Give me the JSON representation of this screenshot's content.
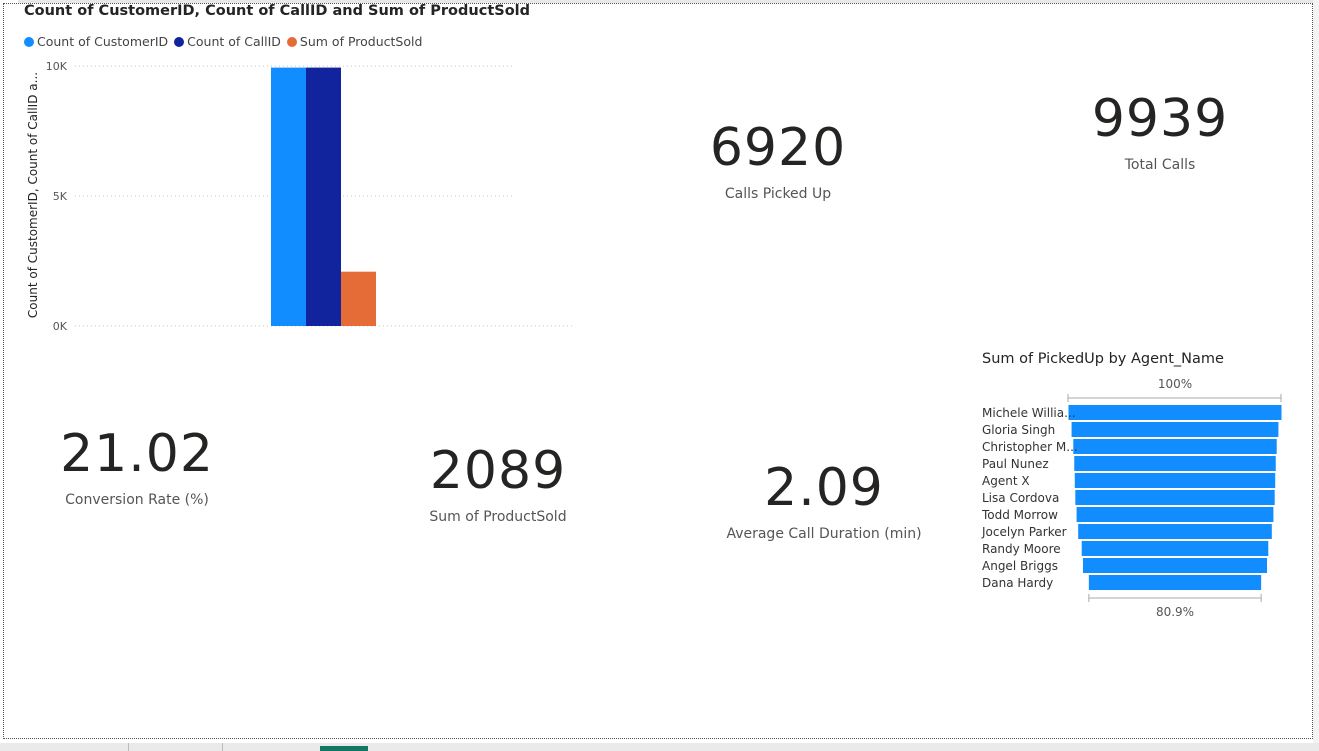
{
  "column_chart": {
    "title": "Count of CustomerID, Count of CallID and Sum of ProductSold",
    "ylabel": "Count of CustomerID, Count of CallID a...",
    "legend": [
      {
        "label": "Count of CustomerID",
        "color": "#118DFF"
      },
      {
        "label": "Count of CallID",
        "color": "#12239E"
      },
      {
        "label": "Sum of ProductSold",
        "color": "#E66C37"
      }
    ]
  },
  "kpis": {
    "calls_picked_up": {
      "value": "6920",
      "label": "Calls Picked Up"
    },
    "total_calls": {
      "value": "9939",
      "label": "Total Calls"
    },
    "conversion_rate": {
      "value": "21.02",
      "label": "Conversion Rate (%)"
    },
    "product_sold": {
      "value": "2089",
      "label": "Sum of ProductSold"
    },
    "avg_duration": {
      "value": "2.09",
      "label": "Average Call Duration (min)"
    }
  },
  "funnel": {
    "title": "Sum of PickedUp by Agent_Name",
    "top_pct": "100%",
    "bottom_pct": "80.9%"
  },
  "chart_data": [
    {
      "type": "bar",
      "title": "Count of CustomerID, Count of CallID and Sum of ProductSold",
      "ylabel": "Count of CustomerID, Count of CallID a...",
      "ylim": [
        0,
        10000
      ],
      "yticks": [
        "0K",
        "5K",
        "10K"
      ],
      "ytick_values": [
        0,
        5000,
        10000
      ],
      "grid": true,
      "legend_position": "top-left",
      "categories": [
        ""
      ],
      "series": [
        {
          "name": "Count of CustomerID",
          "color": "#118DFF",
          "values": [
            9939
          ]
        },
        {
          "name": "Count of CallID",
          "color": "#12239E",
          "values": [
            9939
          ]
        },
        {
          "name": "Sum of ProductSold",
          "color": "#E66C37",
          "values": [
            2089
          ]
        }
      ]
    },
    {
      "type": "bar",
      "orientation": "funnel",
      "title": "Sum of PickedUp by Agent_Name",
      "color": "#118DFF",
      "categories": [
        "Michele Willia...",
        "Gloria Singh",
        "Christopher M...",
        "Paul Nunez",
        "Agent X",
        "Lisa Cordova",
        "Todd Morrow",
        "Jocelyn Parker",
        "Randy Moore",
        "Angel Briggs",
        "Dana Hardy"
      ],
      "values": [
        100,
        97.1,
        95.5,
        94.6,
        94.1,
        93.6,
        92.4,
        90.9,
        87.6,
        86.4,
        80.9
      ],
      "value_unit": "% of first"
    }
  ]
}
